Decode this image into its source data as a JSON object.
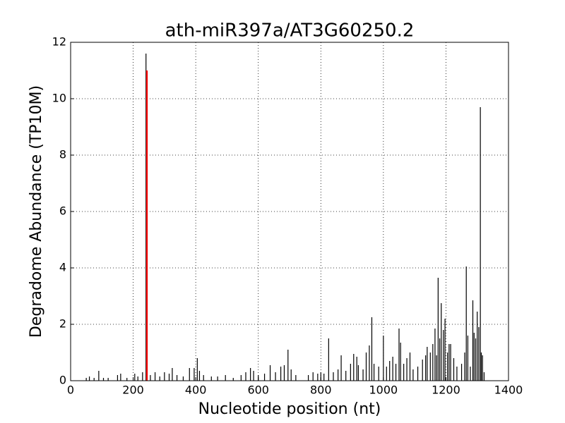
{
  "chart_data": {
    "type": "stem",
    "title": "ath-miR397a/AT3G60250.2",
    "xlabel": "Nucleotide position (nt)",
    "ylabel": "Degradome Abundance (TP10M)",
    "xlim": [
      0,
      1400
    ],
    "xticks": [
      0,
      200,
      400,
      600,
      800,
      1000,
      1200,
      1400
    ],
    "ylim": [
      0,
      12
    ],
    "yticks": [
      0,
      2,
      4,
      6,
      8,
      10,
      12
    ],
    "grid": true,
    "series": [
      {
        "color": "#000000",
        "x": [
          50,
          60,
          75,
          90,
          105,
          120,
          150,
          160,
          180,
          205,
          215,
          230,
          241,
          255,
          270,
          285,
          300,
          315,
          325,
          340,
          360,
          380,
          395,
          405,
          412,
          425,
          450,
          470,
          495,
          520,
          545,
          560,
          575,
          585,
          600,
          620,
          638,
          655,
          672,
          683,
          695,
          705,
          720,
          760,
          775,
          790,
          800,
          810,
          825,
          840,
          855,
          865,
          880,
          895,
          905,
          915,
          920,
          935,
          945,
          955,
          963,
          970,
          985,
          1000,
          1010,
          1020,
          1030,
          1040,
          1050,
          1055,
          1065,
          1075,
          1085,
          1095,
          1110,
          1125,
          1135,
          1140,
          1150,
          1158,
          1165,
          1170,
          1175,
          1180,
          1185,
          1192,
          1197,
          1205,
          1210,
          1215,
          1225,
          1235,
          1250,
          1260,
          1265,
          1270,
          1278,
          1286,
          1290,
          1295,
          1300,
          1305,
          1310,
          1313,
          1317,
          1322
        ],
        "values": [
          0.1,
          0.15,
          0.1,
          0.35,
          0.1,
          0.1,
          0.2,
          0.25,
          0.1,
          0.25,
          0.15,
          0.3,
          11.6,
          0.2,
          0.3,
          0.15,
          0.3,
          0.25,
          0.45,
          0.2,
          0.15,
          0.45,
          0.45,
          0.8,
          0.35,
          0.2,
          0.15,
          0.15,
          0.2,
          0.1,
          0.2,
          0.3,
          0.45,
          0.35,
          0.2,
          0.25,
          0.55,
          0.3,
          0.5,
          0.55,
          1.1,
          0.4,
          0.2,
          0.2,
          0.3,
          0.25,
          0.3,
          0.25,
          1.5,
          0.3,
          0.4,
          0.9,
          0.35,
          0.6,
          0.95,
          0.85,
          0.55,
          0.4,
          1.0,
          1.25,
          2.25,
          0.6,
          0.5,
          1.6,
          0.5,
          0.7,
          0.85,
          0.6,
          1.85,
          1.35,
          0.6,
          0.8,
          1.0,
          0.4,
          0.5,
          0.75,
          0.9,
          1.2,
          1.0,
          1.3,
          1.85,
          0.9,
          3.65,
          1.5,
          2.75,
          1.8,
          2.2,
          1.0,
          1.3,
          1.3,
          0.8,
          0.5,
          0.6,
          1.0,
          4.05,
          1.6,
          0.5,
          2.85,
          1.7,
          1.5,
          2.45,
          1.9,
          9.7,
          1.0,
          0.9,
          0.3
        ]
      },
      {
        "color": "#ff0000",
        "x": [
          244
        ],
        "values": [
          11
        ]
      }
    ]
  }
}
